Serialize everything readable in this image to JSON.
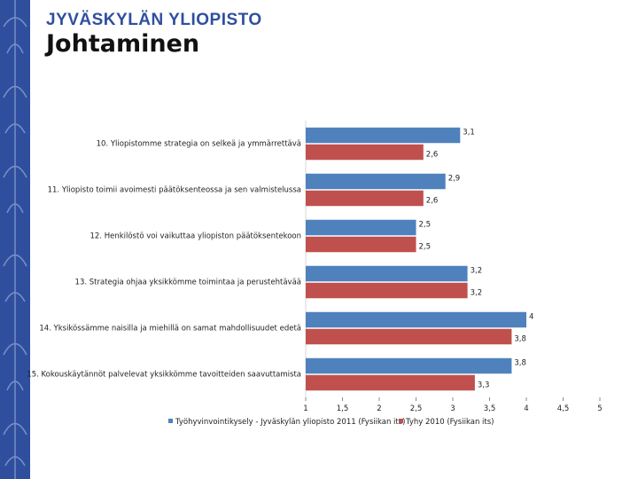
{
  "header": {
    "brand": "JYVÄSKYLÄN YLIOPISTO",
    "title": "Johtaminen"
  },
  "colors": {
    "sidebar": "#2f4f9e",
    "series1": "#4f81bd",
    "series2": "#c0504d"
  },
  "chart_data": {
    "type": "bar",
    "orientation": "horizontal",
    "title": "",
    "xlabel": "",
    "ylabel": "",
    "xlim": [
      1,
      5
    ],
    "ticks": [
      1,
      1.5,
      2,
      2.5,
      3,
      3.5,
      4,
      4.5,
      5
    ],
    "tick_labels": [
      "1",
      "1,5",
      "2",
      "2,5",
      "3",
      "3,5",
      "4",
      "4,5",
      "5"
    ],
    "legend_position": "bottom",
    "categories": [
      "10. Yliopistomme strategia on selkeä ja ymmärrettävä",
      "11. Yliopisto toimii avoimesti päätöksenteossa ja sen valmistelussa",
      "12. Henkilöstö voi vaikuttaa yliopiston päätöksentekoon",
      "13. Strategia ohjaa yksikkömme toimintaa ja perustehtävää",
      "14. Yksikössämme naisilla ja miehillä on samat mahdollisuudet edetä",
      "15. Kokouskäytännöt palvelevat yksikkömme tavoitteiden saavuttamista"
    ],
    "series": [
      {
        "name": "Työhyvinvointikysely - Jyväskylän yliopisto 2011 (Fysiikan its)",
        "values": [
          3.1,
          2.9,
          2.5,
          3.2,
          4,
          3.8
        ],
        "value_labels": [
          "3,1",
          "2,9",
          "2,5",
          "3,2",
          "4",
          "3,8"
        ]
      },
      {
        "name": "Tyhy 2010 (Fysiikan its)",
        "values": [
          2.6,
          2.6,
          2.5,
          3.2,
          3.8,
          3.3
        ],
        "value_labels": [
          "2,6",
          "2,6",
          "2,5",
          "3,2",
          "3,8",
          "3,3"
        ]
      }
    ]
  }
}
